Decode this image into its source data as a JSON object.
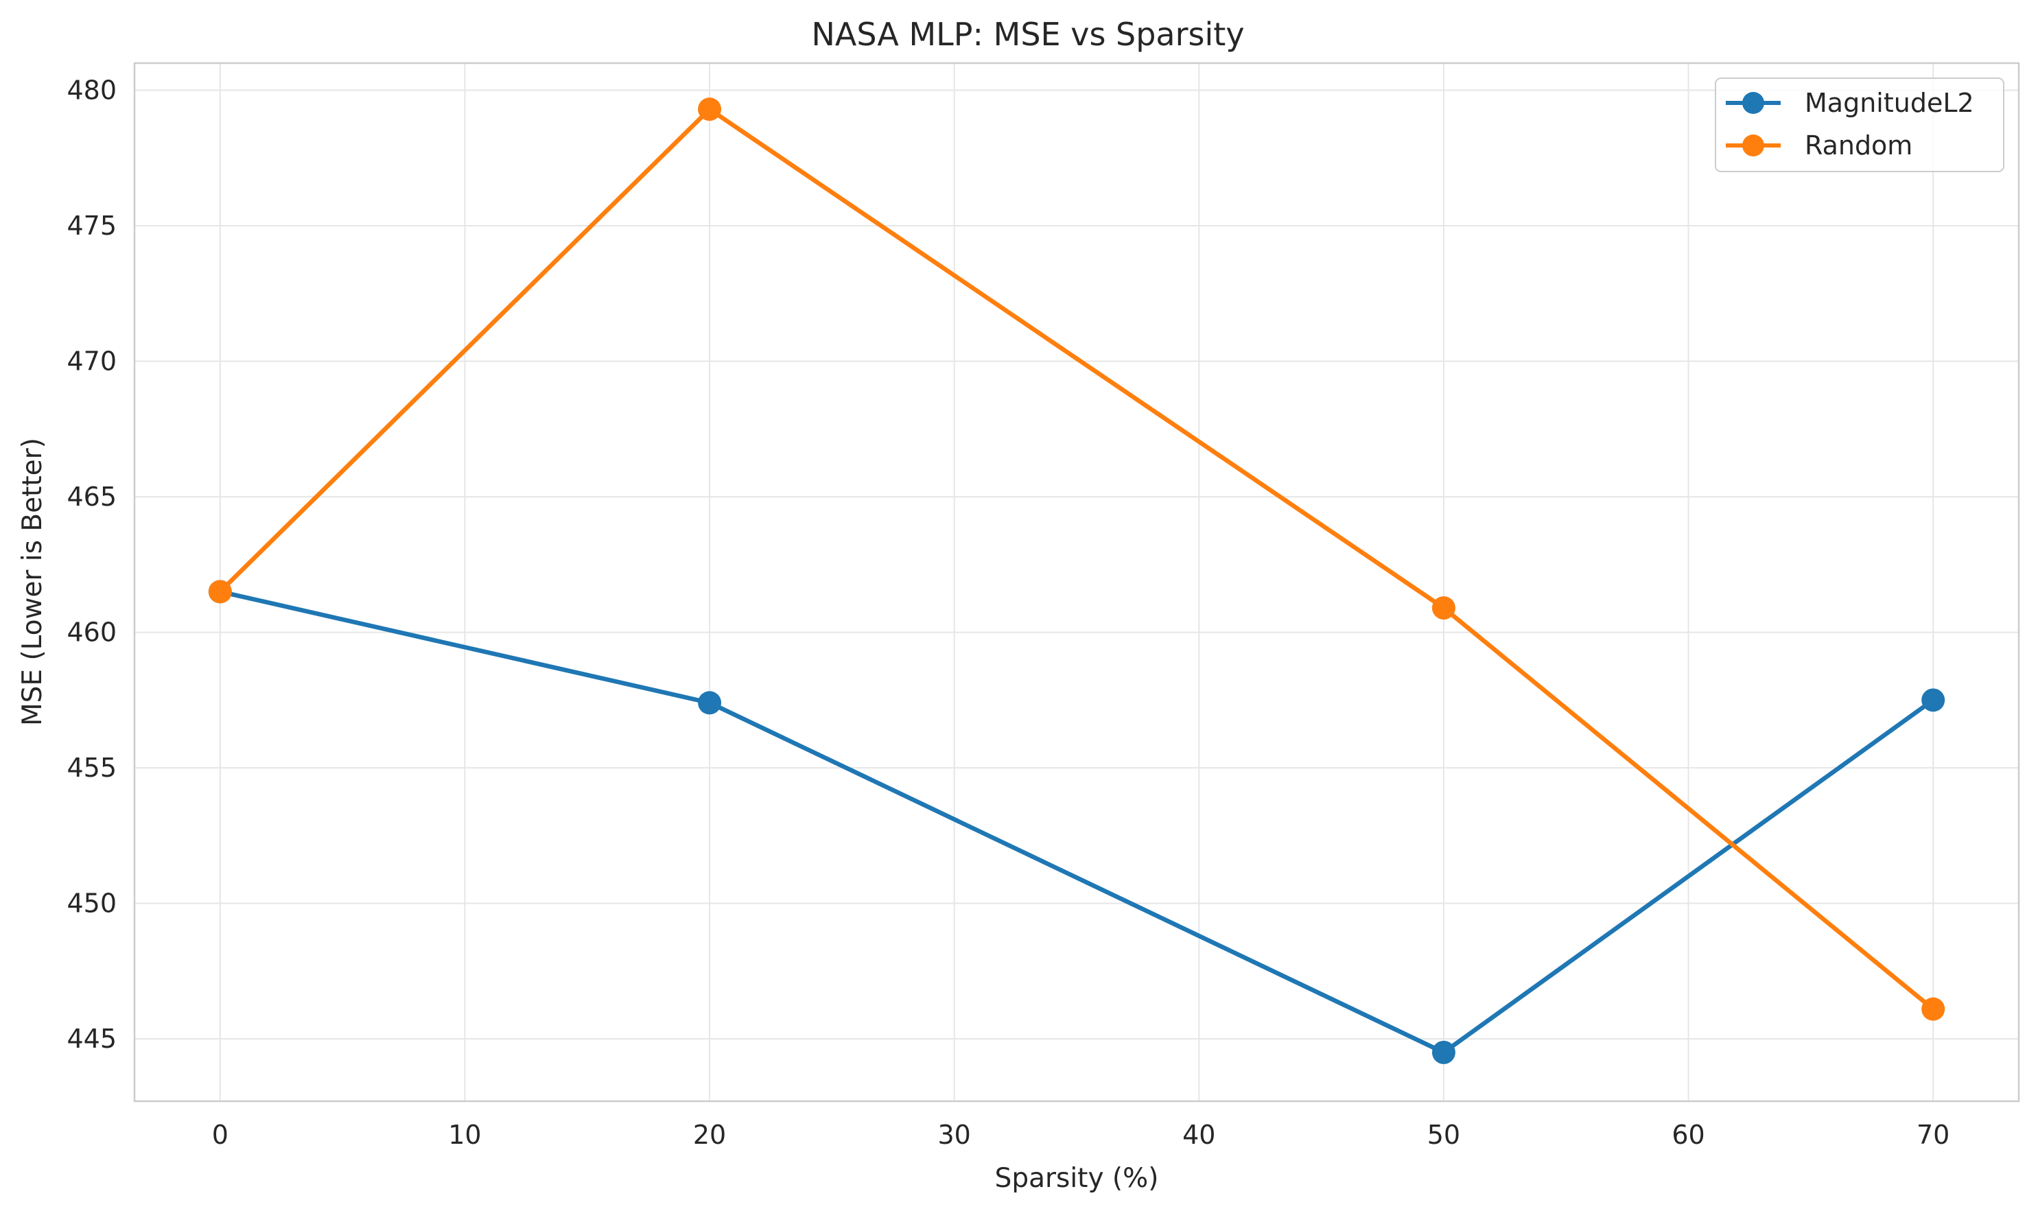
{
  "chart_data": {
    "type": "line",
    "title": "NASA MLP: MSE vs Sparsity",
    "xlabel": "Sparsity (%)",
    "ylabel": "MSE (Lower is Better)",
    "x": [
      0,
      20,
      50,
      70
    ],
    "xlim": [
      -3.5,
      73.5
    ],
    "ylim": [
      442.7,
      481.0
    ],
    "xticks": [
      0,
      10,
      20,
      30,
      40,
      50,
      60,
      70
    ],
    "yticks": [
      445,
      450,
      455,
      460,
      465,
      470,
      475,
      480
    ],
    "grid": true,
    "legend": "top-right",
    "series": [
      {
        "name": "MagnitudeL2",
        "color": "#1f77b4",
        "values": [
          461.5,
          457.4,
          444.5,
          457.5
        ]
      },
      {
        "name": "Random",
        "color": "#ff7f0e",
        "values": [
          461.5,
          479.3,
          460.9,
          446.1
        ]
      }
    ]
  }
}
